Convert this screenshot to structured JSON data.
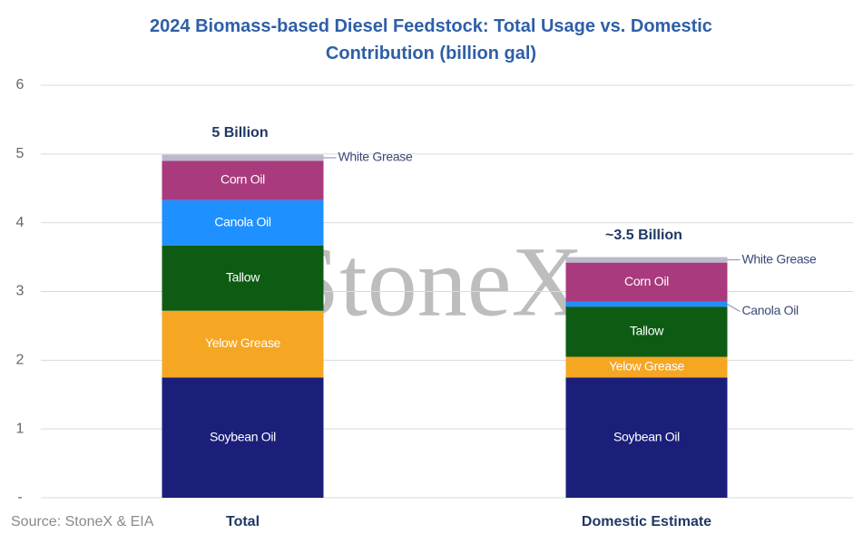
{
  "chart_data": {
    "type": "stacked_bar",
    "title": "2024 Biomass-based  Diesel Feedstock: Total Usage vs. Domestic Contribution (billion gal)",
    "categories": [
      "Total",
      "Domestic Estimate"
    ],
    "series": [
      {
        "name": "Soybean Oil",
        "color": "#1b1f7a",
        "values": [
          1.75,
          1.75
        ]
      },
      {
        "name": "Yelow Grease",
        "color": "#f5a623",
        "values": [
          0.97,
          0.3
        ]
      },
      {
        "name": "Tallow",
        "color": "#0e5b14",
        "values": [
          0.95,
          0.73
        ]
      },
      {
        "name": "Canola Oil",
        "color": "#1e90ff",
        "values": [
          0.66,
          0.07
        ]
      },
      {
        "name": "Corn Oil",
        "color": "#a93a7d",
        "values": [
          0.57,
          0.57
        ]
      },
      {
        "name": "White Grease",
        "color": "#bdb9cc",
        "values": [
          0.09,
          0.08
        ]
      }
    ],
    "annotations": [
      "5 Billion",
      "~3.5 Billion"
    ],
    "watermark": "StoneX",
    "source": "Source: StoneX & EIA",
    "ylim": [
      0,
      6
    ],
    "yticks": [
      {
        "value": 0,
        "label": "-"
      },
      1,
      2,
      3,
      4,
      5,
      6
    ],
    "grid": true
  }
}
